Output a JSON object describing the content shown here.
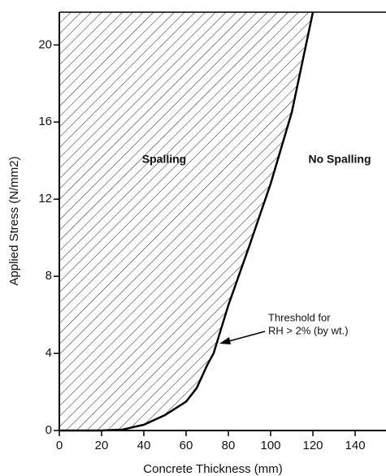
{
  "chart_data": {
    "type": "line",
    "x_label": "Concrete Thickness (mm)",
    "y_label": "Applied Stress (N/mm2)",
    "annotations": [
      "Spalling",
      "No Spalling",
      "Threshold for",
      "RH > 2% (by wt.)"
    ],
    "x": [
      0,
      20,
      30,
      40,
      50,
      60,
      65,
      70,
      73,
      80,
      90,
      100,
      110,
      120
    ],
    "series": [
      {
        "color": "#000000",
        "values": [
          0,
          0,
          0.05,
          0.3,
          0.8,
          1.5,
          2.2,
          3.4,
          4,
          6.5,
          9.6,
          12.8,
          16.5,
          21.7
        ]
      }
    ],
    "xlim": [
      0,
      154.6
    ],
    "xticks": [
      0,
      20,
      40,
      60,
      80,
      100,
      120,
      140
    ],
    "ylim": [
      0,
      21.7
    ],
    "yticks": [
      0,
      4,
      8,
      12,
      16,
      20
    ],
    "hatch": true
  }
}
